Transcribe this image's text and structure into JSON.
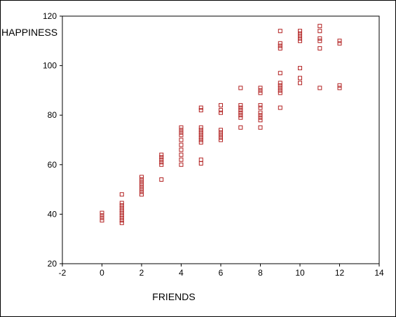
{
  "colors": {
    "marker": "#b22222",
    "axis": "#000000",
    "background": "#ffffff"
  },
  "chart_data": {
    "type": "scatter",
    "title": "",
    "xlabel": "FRIENDS",
    "ylabel": "HAPPINESS",
    "xlim": [
      -2,
      14
    ],
    "ylim": [
      20,
      120
    ],
    "xticks": [
      -2,
      0,
      2,
      4,
      6,
      8,
      10,
      12,
      14
    ],
    "yticks": [
      20,
      40,
      60,
      80,
      100,
      120
    ],
    "grid": false,
    "legend": "none",
    "marker": "hollow-square",
    "series": [
      {
        "points": [
          [
            0,
            37.5
          ],
          [
            0,
            38.5
          ],
          [
            0,
            39.5
          ],
          [
            0,
            40.5
          ],
          [
            1,
            36.5
          ],
          [
            1,
            37.5
          ],
          [
            1,
            38.5
          ],
          [
            1,
            39.5
          ],
          [
            1,
            40.5
          ],
          [
            1,
            41.5
          ],
          [
            1,
            42.5
          ],
          [
            1,
            43.5
          ],
          [
            1,
            44.5
          ],
          [
            1,
            48
          ],
          [
            2,
            48
          ],
          [
            2,
            49
          ],
          [
            2,
            50
          ],
          [
            2,
            51
          ],
          [
            2,
            52
          ],
          [
            2,
            53
          ],
          [
            2,
            54
          ],
          [
            2,
            55
          ],
          [
            3,
            54
          ],
          [
            3,
            60
          ],
          [
            3,
            61
          ],
          [
            3,
            62
          ],
          [
            3,
            63
          ],
          [
            3,
            64
          ],
          [
            4,
            60
          ],
          [
            4,
            62
          ],
          [
            4,
            64
          ],
          [
            4,
            66
          ],
          [
            4,
            68
          ],
          [
            4,
            70
          ],
          [
            4,
            72
          ],
          [
            4,
            73
          ],
          [
            4,
            74
          ],
          [
            4,
            75
          ],
          [
            5,
            60.5
          ],
          [
            5,
            62
          ],
          [
            5,
            69
          ],
          [
            5,
            70
          ],
          [
            5,
            71
          ],
          [
            5,
            72
          ],
          [
            5,
            73
          ],
          [
            5,
            74
          ],
          [
            5,
            75
          ],
          [
            5,
            82
          ],
          [
            5,
            83
          ],
          [
            6,
            70
          ],
          [
            6,
            71
          ],
          [
            6,
            72
          ],
          [
            6,
            73
          ],
          [
            6,
            74
          ],
          [
            6,
            81
          ],
          [
            6,
            82
          ],
          [
            6,
            84
          ],
          [
            7,
            75
          ],
          [
            7,
            79
          ],
          [
            7,
            80
          ],
          [
            7,
            81
          ],
          [
            7,
            82
          ],
          [
            7,
            83
          ],
          [
            7,
            84
          ],
          [
            7,
            91
          ],
          [
            8,
            75
          ],
          [
            8,
            78
          ],
          [
            8,
            79
          ],
          [
            8,
            80
          ],
          [
            8,
            81
          ],
          [
            8,
            83
          ],
          [
            8,
            84
          ],
          [
            8,
            89
          ],
          [
            8,
            90
          ],
          [
            8,
            91
          ],
          [
            9,
            83
          ],
          [
            9,
            89
          ],
          [
            9,
            90
          ],
          [
            9,
            91
          ],
          [
            9,
            92
          ],
          [
            9,
            93
          ],
          [
            9,
            97
          ],
          [
            9,
            107
          ],
          [
            9,
            108
          ],
          [
            9,
            109
          ],
          [
            9,
            114
          ],
          [
            10,
            93
          ],
          [
            10,
            95
          ],
          [
            10,
            99
          ],
          [
            10,
            110
          ],
          [
            10,
            111
          ],
          [
            10,
            112
          ],
          [
            10,
            113
          ],
          [
            10,
            114
          ],
          [
            11,
            91
          ],
          [
            11,
            107
          ],
          [
            11,
            110
          ],
          [
            11,
            111
          ],
          [
            11,
            114
          ],
          [
            11,
            116
          ],
          [
            12,
            91
          ],
          [
            12,
            92
          ],
          [
            12,
            109
          ],
          [
            12,
            110
          ]
        ]
      }
    ]
  }
}
